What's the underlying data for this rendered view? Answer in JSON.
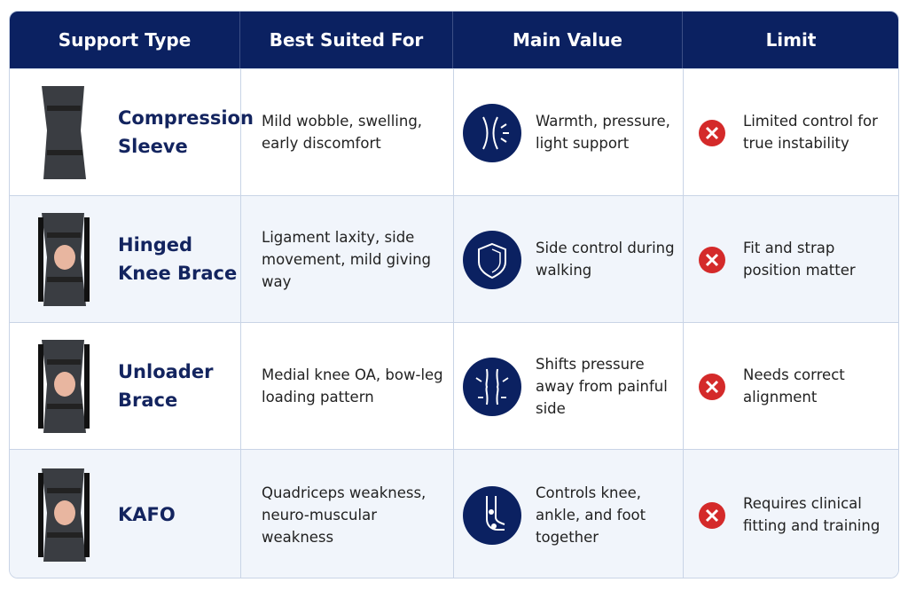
{
  "table": {
    "header": [
      "Support Type",
      "Best Suited For",
      "Main Value",
      "Limit"
    ],
    "rows": [
      [
        "Compression Sleeve",
        "Mild wobble, swelling, early discomfort",
        "Warmth, pressure, light support",
        "Limited control for true instability"
      ],
      [
        "Hinged Knee Brace",
        "Ligament laxity, side movement, mild giving way",
        "Side control during walking",
        "Fit and strap position matter"
      ],
      [
        "Unloader Brace",
        "Medial knee OA, bow-leg loading pattern",
        "Shifts pressure away from painful side",
        "Needs correct alignment"
      ],
      [
        "KAFO",
        "Quadriceps weakness, neuro-muscular weakness",
        "Controls knee, ankle, and foot together",
        "Requires clinical fitting and training"
      ]
    ]
  }
}
